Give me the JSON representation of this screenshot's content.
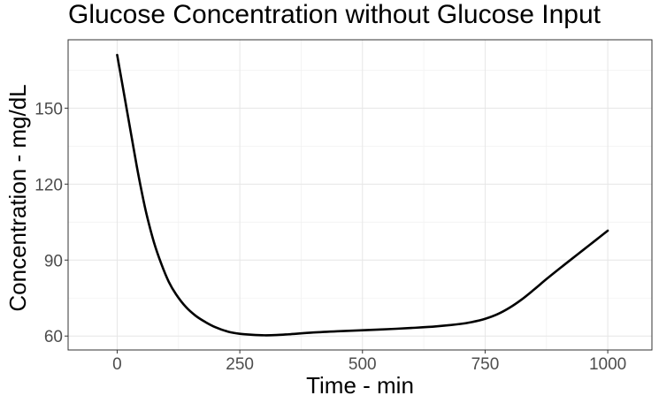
{
  "chart_data": {
    "type": "line",
    "title": "Glucose Concentration without Glucose Input",
    "xlabel": "Time - min",
    "ylabel": "Concentration - mg/dL",
    "xlim": [
      -100,
      1090
    ],
    "ylim": [
      54.5,
      177
    ],
    "x_ticks": [
      0,
      250,
      500,
      750,
      1000
    ],
    "y_ticks": [
      60,
      90,
      120,
      150
    ],
    "x_tick_labels": [
      "0",
      "250",
      "500",
      "750",
      "1000"
    ],
    "y_tick_labels": [
      "60",
      "90",
      "120",
      "150"
    ],
    "grid": true,
    "legend": "none",
    "series": [
      {
        "color": "#000000",
        "x": [
          0,
          10,
          20,
          30,
          40,
          50,
          60,
          75,
          90,
          105,
          120,
          140,
          160,
          180,
          200,
          225,
          250,
          275,
          300,
          325,
          350,
          400,
          450,
          500,
          550,
          600,
          650,
          700,
          725,
          750,
          775,
          800,
          825,
          850,
          875,
          900,
          925,
          950,
          975,
          1000
        ],
        "y": [
          171,
          160,
          149,
          138,
          127,
          117,
          108,
          97,
          88.5,
          81.5,
          76.5,
          71.5,
          68,
          65.5,
          63.5,
          61.8,
          60.9,
          60.5,
          60.3,
          60.4,
          60.7,
          61.4,
          61.9,
          62.3,
          62.7,
          63.2,
          63.8,
          64.8,
          65.6,
          66.8,
          68.6,
          71.2,
          74.5,
          78.4,
          82.5,
          86.4,
          90.2,
          94,
          97.8,
          101.6
        ]
      }
    ]
  }
}
